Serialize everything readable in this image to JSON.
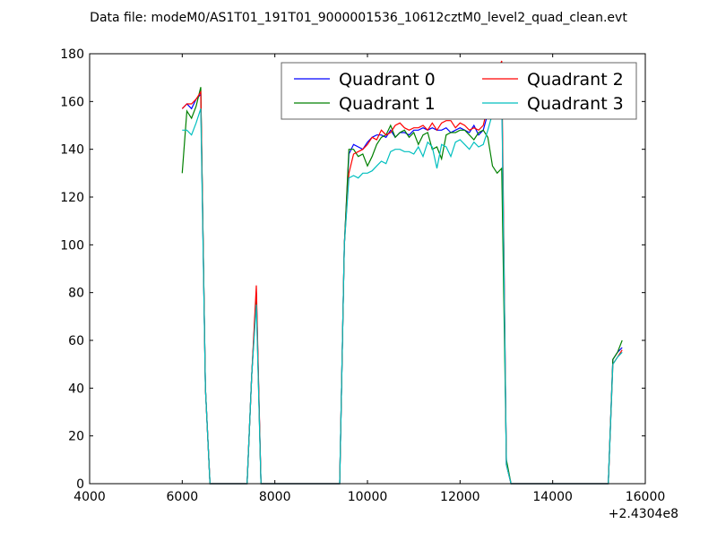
{
  "chart_data": {
    "type": "line",
    "title": "Data file: modeM0/AS1T01_191T01_9000001536_10612cztM0_level2_quad_clean.evt",
    "xlabel": "",
    "ylabel": "",
    "x_offset_label": "+2.4304e8",
    "xlim": [
      4000,
      16000
    ],
    "ylim": [
      0,
      180
    ],
    "xticks": [
      4000,
      6000,
      8000,
      10000,
      12000,
      14000,
      16000
    ],
    "xtick_labels": [
      "4000",
      "6000",
      "8000",
      "10000",
      "12000",
      "14000",
      "16000"
    ],
    "yticks": [
      0,
      20,
      40,
      60,
      80,
      100,
      120,
      140,
      160,
      180
    ],
    "ytick_labels": [
      "0",
      "20",
      "40",
      "60",
      "80",
      "100",
      "120",
      "140",
      "160",
      "180"
    ],
    "grid": false,
    "legend_position": "top-right",
    "x_start": 6000,
    "x_step": 100,
    "series": [
      {
        "name": "Quadrant 0",
        "color": "#0000ff",
        "values": [
          157,
          159,
          157,
          161,
          163,
          40,
          0,
          0,
          0,
          0,
          0,
          0,
          0,
          0,
          0,
          45,
          80,
          0,
          0,
          0,
          0,
          0,
          0,
          0,
          0,
          0,
          0,
          0,
          0,
          0,
          0,
          0,
          0,
          0,
          0,
          100,
          138,
          142,
          141,
          140,
          143,
          145,
          146,
          146,
          145,
          148,
          145,
          147,
          147,
          146,
          148,
          148,
          149,
          148,
          149,
          148,
          148,
          149,
          147,
          148,
          149,
          148,
          147,
          150,
          146,
          148,
          155,
          160,
          165,
          168,
          8,
          0,
          0,
          0,
          0,
          0,
          0,
          0,
          0,
          0,
          0,
          0,
          0,
          0,
          0,
          0,
          0,
          0,
          0,
          0,
          0,
          0,
          0,
          52,
          55,
          57
        ]
      },
      {
        "name": "Quadrant 1",
        "color": "#008000",
        "values": [
          130,
          156,
          153,
          158,
          166,
          40,
          0,
          0,
          0,
          0,
          0,
          0,
          0,
          0,
          0,
          45,
          78,
          0,
          0,
          0,
          0,
          0,
          0,
          0,
          0,
          0,
          0,
          0,
          0,
          0,
          0,
          0,
          0,
          0,
          0,
          100,
          140,
          140,
          137,
          138,
          133,
          137,
          142,
          145,
          146,
          150,
          145,
          147,
          148,
          145,
          147,
          142,
          146,
          147,
          140,
          141,
          136,
          146,
          147,
          147,
          148,
          148,
          146,
          144,
          147,
          148,
          145,
          133,
          130,
          132,
          10,
          0,
          0,
          0,
          0,
          0,
          0,
          0,
          0,
          0,
          0,
          0,
          0,
          0,
          0,
          0,
          0,
          0,
          0,
          0,
          0,
          0,
          0,
          52,
          55,
          60
        ]
      },
      {
        "name": "Quadrant 2",
        "color": "#ff0000",
        "values": [
          157,
          159,
          159,
          161,
          164,
          40,
          0,
          0,
          0,
          0,
          0,
          0,
          0,
          0,
          0,
          45,
          83,
          0,
          0,
          0,
          0,
          0,
          0,
          0,
          0,
          0,
          0,
          0,
          0,
          0,
          0,
          0,
          0,
          0,
          0,
          100,
          130,
          138,
          139,
          140,
          142,
          145,
          144,
          148,
          146,
          147,
          150,
          151,
          149,
          148,
          149,
          149,
          150,
          148,
          151,
          148,
          151,
          152,
          152,
          149,
          151,
          150,
          148,
          149,
          148,
          150,
          158,
          165,
          172,
          177,
          8,
          0,
          0,
          0,
          0,
          0,
          0,
          0,
          0,
          0,
          0,
          0,
          0,
          0,
          0,
          0,
          0,
          0,
          0,
          0,
          0,
          0,
          0,
          50,
          53,
          56
        ]
      },
      {
        "name": "Quadrant 3",
        "color": "#00bfbf",
        "values": [
          148,
          148,
          146,
          151,
          157,
          40,
          0,
          0,
          0,
          0,
          0,
          0,
          0,
          0,
          0,
          45,
          75,
          0,
          0,
          0,
          0,
          0,
          0,
          0,
          0,
          0,
          0,
          0,
          0,
          0,
          0,
          0,
          0,
          0,
          0,
          100,
          128,
          129,
          128,
          130,
          130,
          131,
          133,
          135,
          134,
          139,
          140,
          140,
          139,
          139,
          138,
          141,
          137,
          143,
          141,
          132,
          142,
          141,
          137,
          143,
          144,
          142,
          140,
          143,
          141,
          142,
          148,
          155,
          160,
          165,
          8,
          0,
          0,
          0,
          0,
          0,
          0,
          0,
          0,
          0,
          0,
          0,
          0,
          0,
          0,
          0,
          0,
          0,
          0,
          0,
          0,
          0,
          0,
          50,
          53,
          55
        ]
      }
    ]
  }
}
